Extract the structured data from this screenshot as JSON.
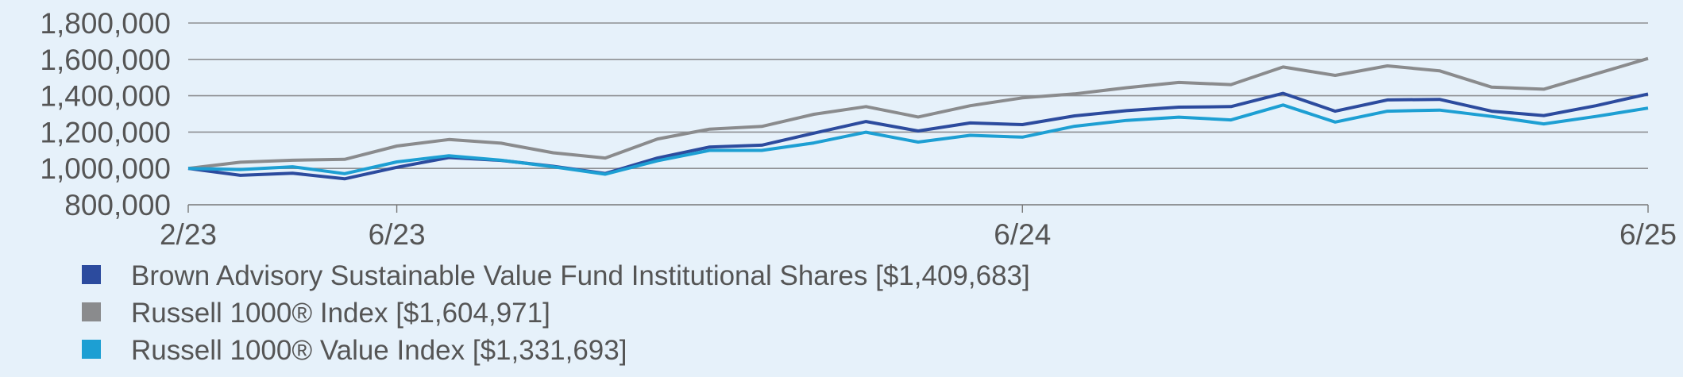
{
  "chart_data": {
    "type": "line",
    "title": "",
    "xlabel": "",
    "ylabel": "",
    "ylim": [
      800000,
      1800000
    ],
    "yticks": [
      "1,800,000",
      "1,600,000",
      "1,400,000",
      "1,200,000",
      "1,000,000",
      "800,000"
    ],
    "ytick_values": [
      1800000,
      1600000,
      1400000,
      1200000,
      1000000,
      800000
    ],
    "x": [
      "2/23",
      "3/23",
      "4/23",
      "5/23",
      "6/23",
      "7/23",
      "8/23",
      "9/23",
      "10/23",
      "11/23",
      "12/23",
      "1/24",
      "2/24",
      "3/24",
      "4/24",
      "5/24",
      "6/24",
      "7/24",
      "8/24",
      "9/24",
      "10/24",
      "11/24",
      "12/24",
      "1/25",
      "2/25",
      "3/25",
      "4/25",
      "5/25",
      "6/25"
    ],
    "xticks": [
      {
        "label": "2/23",
        "index": 0
      },
      {
        "label": "6/23",
        "index": 4
      },
      {
        "label": "6/24",
        "index": 16
      },
      {
        "label": "6/25",
        "index": 28
      }
    ],
    "grid": true,
    "legend_position": "bottom-left",
    "series": [
      {
        "name": "Brown Advisory Sustainable Value Fund Institutional Shares [$1,409,683]",
        "color": "#2c4b9e",
        "values": [
          1000000,
          962000,
          974000,
          943000,
          1006000,
          1060000,
          1044000,
          1012000,
          972000,
          1057000,
          1118000,
          1128000,
          1194000,
          1258000,
          1206000,
          1250000,
          1241000,
          1289000,
          1318000,
          1337000,
          1340000,
          1413000,
          1315000,
          1377000,
          1380000,
          1315000,
          1291000,
          1345000,
          1409683
        ]
      },
      {
        "name": "Russell 1000® Index [$1,604,971]",
        "color": "#8a8b8d",
        "values": [
          1000000,
          1034000,
          1045000,
          1050000,
          1123000,
          1159000,
          1139000,
          1086000,
          1057000,
          1162000,
          1216000,
          1231000,
          1298000,
          1340000,
          1283000,
          1345000,
          1388000,
          1410000,
          1444000,
          1473000,
          1461000,
          1558000,
          1512000,
          1564000,
          1537000,
          1447000,
          1436000,
          1520000,
          1604971
        ]
      },
      {
        "name": "Russell 1000® Value Index [$1,331,693]",
        "color": "#1d9fd3",
        "values": [
          1000000,
          994000,
          1009000,
          971000,
          1036000,
          1070000,
          1045000,
          1009000,
          968000,
          1042000,
          1099000,
          1099000,
          1140000,
          1199000,
          1145000,
          1182000,
          1172000,
          1232000,
          1264000,
          1282000,
          1267000,
          1349000,
          1255000,
          1315000,
          1321000,
          1286000,
          1245000,
          1286000,
          1331693
        ]
      }
    ]
  }
}
